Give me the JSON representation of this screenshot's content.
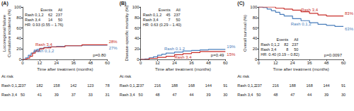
{
  "chart_data": [
    {
      "type": "line",
      "title": "(A)",
      "xlabel": "Time after treatment (months)",
      "ylabel": "Locoregional failure\nCumulative incidence (%)",
      "xlim": [
        0,
        60
      ],
      "xticks": [
        0,
        12,
        24,
        36,
        48,
        60
      ],
      "ylim": [
        0,
        100
      ],
      "yticks": [
        0,
        20,
        40,
        60,
        80,
        100
      ],
      "grid": false,
      "series": [
        {
          "name": "Rash 0,1,2",
          "color": "#4a7ebb",
          "line_style": "step",
          "end_label": "27%",
          "x": [
            0,
            2,
            4,
            6,
            8,
            10,
            12,
            15,
            18,
            24,
            30,
            42,
            60
          ],
          "values": [
            0,
            3,
            8,
            12,
            16,
            19,
            21,
            23,
            24,
            25,
            26,
            27,
            27
          ]
        },
        {
          "name": "Rash 3,4",
          "color": "#c8302c",
          "line_style": "step",
          "end_label": "28%",
          "x": [
            0,
            3,
            5,
            7,
            9,
            12,
            15,
            20,
            30,
            42,
            60
          ],
          "values": [
            0,
            2,
            6,
            12,
            16,
            20,
            22,
            24,
            26,
            28,
            28
          ]
        }
      ],
      "summary_table": {
        "columns": [
          "Events",
          "All"
        ],
        "rows": [
          {
            "name": "Rash 0,1,2",
            "values": [
              62,
              237
            ]
          },
          {
            "name": "Rash 3,4",
            "values": [
              14,
              50
            ]
          }
        ]
      },
      "hr": "HR: 0.93 (0.55 – 1.76)",
      "p_value": "p=0.80",
      "at_risk": {
        "title": "At risk",
        "rows": [
          {
            "name": "Rash 0,1,2",
            "counts": [
              237,
              182,
              158,
              142,
              123,
              78
            ]
          },
          {
            "name": "Rash 3,4",
            "counts": [
              50,
              41,
              39,
              37,
              33,
              31
            ]
          }
        ]
      }
    },
    {
      "type": "line",
      "title": "(B)",
      "xlabel": "Time after treatment (months)",
      "ylabel": "Disease-specific mortality (%)",
      "xlim": [
        0,
        60
      ],
      "xticks": [
        0,
        12,
        24,
        36,
        48,
        60
      ],
      "ylim": [
        0,
        100
      ],
      "yticks": [
        0,
        20,
        40,
        60,
        80,
        100
      ],
      "grid": false,
      "series": [
        {
          "name": "Rash 0,1,2",
          "color": "#4a7ebb",
          "line_style": "step",
          "end_label": "19%",
          "x": [
            0,
            3,
            6,
            9,
            12,
            15,
            18,
            24,
            30,
            36,
            42,
            48,
            60
          ],
          "values": [
            0,
            1,
            3,
            5,
            8,
            10,
            12,
            14,
            16,
            17,
            18,
            19,
            19
          ]
        },
        {
          "name": "Rash 3,4",
          "color": "#c8302c",
          "line_style": "step",
          "end_label": "15%",
          "x": [
            0,
            6,
            12,
            18,
            24,
            30,
            36,
            42,
            60
          ],
          "values": [
            0,
            2,
            4,
            6,
            9,
            11,
            13,
            15,
            15
          ]
        }
      ],
      "summary_table": {
        "columns": [
          "Events",
          "All"
        ],
        "rows": [
          {
            "name": "Rash 0,1,2",
            "values": [
              45,
              237
            ]
          },
          {
            "name": "Rash 3,4",
            "values": [
              7,
              50
            ]
          }
        ]
      },
      "hr": "HR: 0.63 (0.29 – 1.40)",
      "p_value": "p=0.49",
      "at_risk": {
        "title": "At risk",
        "rows": [
          {
            "name": "Rash 0,1,2",
            "counts": [
              237,
              216,
              188,
              168,
              144,
              91
            ]
          },
          {
            "name": "Rash 3,4",
            "counts": [
              50,
              48,
              47,
              44,
              39,
              30
            ]
          }
        ]
      }
    },
    {
      "type": "line",
      "title": "(C)",
      "xlabel": "Time after treatment (months)",
      "ylabel": "Overall survival (%)",
      "xlim": [
        0,
        60
      ],
      "xticks": [
        0,
        12,
        24,
        36,
        48,
        60
      ],
      "ylim": [
        0,
        100
      ],
      "yticks": [
        0,
        20,
        40,
        60,
        80,
        100
      ],
      "grid": false,
      "series": [
        {
          "name": "Rash 0,1,2",
          "color": "#4a7ebb",
          "line_style": "step",
          "end_label": "63%",
          "x": [
            0,
            3,
            6,
            9,
            12,
            15,
            18,
            24,
            30,
            36,
            42,
            48,
            54,
            60
          ],
          "values": [
            100,
            99,
            96,
            93,
            90,
            86,
            83,
            78,
            74,
            70,
            67,
            65,
            63,
            63
          ]
        },
        {
          "name": "Rash 3,4",
          "color": "#c8302c",
          "line_style": "step",
          "end_label": "83%",
          "x": [
            0,
            6,
            12,
            18,
            24,
            30,
            36,
            42,
            48,
            60
          ],
          "values": [
            100,
            100,
            98,
            96,
            94,
            91,
            88,
            85,
            83,
            83
          ]
        }
      ],
      "summary_table": {
        "columns": [
          "Events",
          "All"
        ],
        "rows": [
          {
            "name": "Rash 0,1,2",
            "values": [
              82,
              237
            ]
          },
          {
            "name": "Rash 3,4",
            "values": [
              8,
              50
            ]
          }
        ]
      },
      "hr": "HR: 0.40 (0.19 – 0.82)",
      "p_value": "p=0.0097",
      "at_risk": {
        "title": "At risk",
        "rows": [
          {
            "name": "Rash 0,1,2",
            "counts": [
              237,
              216,
              188,
              168,
              144,
              91
            ]
          },
          {
            "name": "Rash 3,4",
            "counts": [
              50,
              48,
              47,
              44,
              39,
              30
            ]
          }
        ]
      }
    }
  ]
}
